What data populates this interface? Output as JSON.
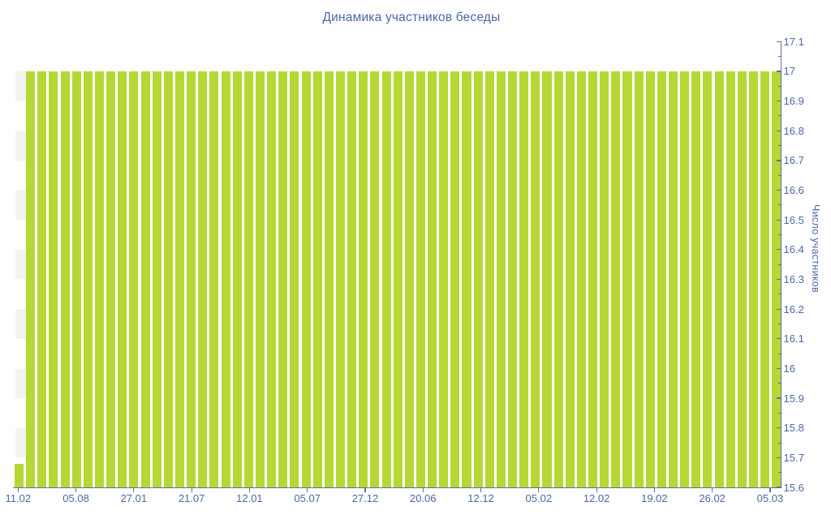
{
  "chart_data": {
    "type": "bar",
    "title": "Динамика участников беседы",
    "xlabel": "",
    "ylabel": "Число участников",
    "ylim": [
      15.6,
      17.1
    ],
    "y_tick_step": 0.1,
    "y_minor_tick_step": 0.05,
    "y_axis_side": "right",
    "grid": "off",
    "legend": "none",
    "y_tick_labels": [
      "17.1",
      "17",
      "16.9",
      "16.8",
      "16.7",
      "16.6",
      "16.5",
      "16.4",
      "16.3",
      "16.2",
      "16.1",
      "16",
      "15.9",
      "15.8",
      "15.7",
      "15.6"
    ],
    "x_tick_labels": [
      "11.02",
      "05.08",
      "27.01",
      "21.07",
      "12.01",
      "05.07",
      "27.12",
      "20.06",
      "12.12",
      "05.02",
      "12.02",
      "19.02",
      "26.02",
      "05.03"
    ],
    "bar_count": 67,
    "values": [
      15.68,
      17,
      17,
      17,
      17,
      17,
      17,
      17,
      17,
      17,
      17,
      17,
      17,
      17,
      17,
      17,
      17,
      17,
      17,
      17,
      17,
      17,
      17,
      17,
      17,
      17,
      17,
      17,
      17,
      17,
      17,
      17,
      17,
      17,
      17,
      17,
      17,
      17,
      17,
      17,
      17,
      17,
      17,
      17,
      17,
      17,
      17,
      17,
      17,
      17,
      17,
      17,
      17,
      17,
      17,
      17,
      17,
      17,
      17,
      17,
      17,
      17,
      17,
      17,
      17,
      17,
      17
    ],
    "colors": {
      "bar": "#b5d835",
      "text": "#4b68a4",
      "axis_line": "#5e6fa0",
      "alternate_band": "#f3f3f3",
      "background": "#ffffff"
    },
    "left_strip_zebra_bands": true
  }
}
